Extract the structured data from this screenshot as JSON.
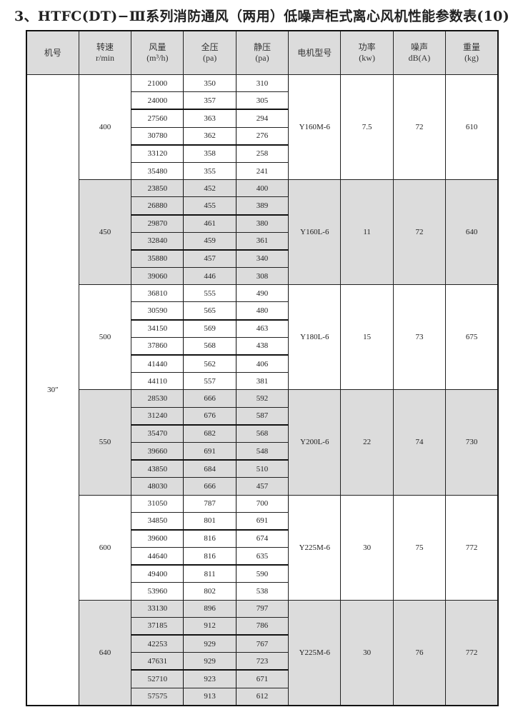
{
  "title": "3、HTFC(DT)−Ⅲ系列消防通风（两用）低噪声柜式离心风机性能参数表(10)",
  "headers": [
    [
      "机号",
      ""
    ],
    [
      "转速",
      "r/min"
    ],
    [
      "风量",
      "(m³/h)"
    ],
    [
      "全压",
      "(pa)"
    ],
    [
      "静压",
      "(pa)"
    ],
    [
      "电机型号",
      ""
    ],
    [
      "功率",
      "(kw)"
    ],
    [
      "噪声",
      "dB(A)"
    ],
    [
      "重量",
      "(kg)"
    ]
  ],
  "machine_no": "30″",
  "groups": [
    {
      "speed": "400",
      "motor": "Y160M-6",
      "power": "7.5",
      "noise": "72",
      "weight": "610",
      "shaded": false,
      "rows": [
        [
          "21000",
          "350",
          "310"
        ],
        [
          "24000",
          "357",
          "305"
        ],
        [
          "27560",
          "363",
          "294"
        ],
        [
          "30780",
          "362",
          "276"
        ],
        [
          "33120",
          "358",
          "258"
        ],
        [
          "35480",
          "355",
          "241"
        ]
      ]
    },
    {
      "speed": "450",
      "motor": "Y160L-6",
      "power": "11",
      "noise": "72",
      "weight": "640",
      "shaded": true,
      "rows": [
        [
          "23850",
          "452",
          "400"
        ],
        [
          "26880",
          "455",
          "389"
        ],
        [
          "29870",
          "461",
          "380"
        ],
        [
          "32840",
          "459",
          "361"
        ],
        [
          "35880",
          "457",
          "340"
        ],
        [
          "39060",
          "446",
          "308"
        ]
      ]
    },
    {
      "speed": "500",
      "motor": "Y180L-6",
      "power": "15",
      "noise": "73",
      "weight": "675",
      "shaded": false,
      "rows": [
        [
          "36810",
          "555",
          "490"
        ],
        [
          "30590",
          "565",
          "480"
        ],
        [
          "34150",
          "569",
          "463"
        ],
        [
          "37860",
          "568",
          "438"
        ],
        [
          "41440",
          "562",
          "406"
        ],
        [
          "44110",
          "557",
          "381"
        ]
      ]
    },
    {
      "speed": "550",
      "motor": "Y200L-6",
      "power": "22",
      "noise": "74",
      "weight": "730",
      "shaded": true,
      "rows": [
        [
          "28530",
          "666",
          "592"
        ],
        [
          "31240",
          "676",
          "587"
        ],
        [
          "35470",
          "682",
          "568"
        ],
        [
          "39660",
          "691",
          "548"
        ],
        [
          "43850",
          "684",
          "510"
        ],
        [
          "48030",
          "666",
          "457"
        ]
      ]
    },
    {
      "speed": "600",
      "motor": "Y225M-6",
      "power": "30",
      "noise": "75",
      "weight": "772",
      "shaded": false,
      "rows": [
        [
          "31050",
          "787",
          "700"
        ],
        [
          "34850",
          "801",
          "691"
        ],
        [
          "39600",
          "816",
          "674"
        ],
        [
          "44640",
          "816",
          "635"
        ],
        [
          "49400",
          "811",
          "590"
        ],
        [
          "53960",
          "802",
          "538"
        ]
      ]
    },
    {
      "speed": "640",
      "motor": "Y225M-6",
      "power": "30",
      "noise": "76",
      "weight": "772",
      "shaded": true,
      "rows": [
        [
          "33130",
          "896",
          "797"
        ],
        [
          "37185",
          "912",
          "786"
        ],
        [
          "42253",
          "929",
          "767"
        ],
        [
          "47631",
          "929",
          "723"
        ],
        [
          "52710",
          "923",
          "671"
        ],
        [
          "57575",
          "913",
          "612"
        ]
      ]
    }
  ],
  "colors": {
    "shade": "#dcdcdc",
    "border": "#111111"
  }
}
